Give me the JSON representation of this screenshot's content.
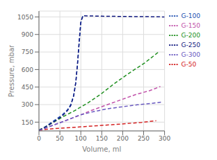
{
  "chart_data": {
    "type": "line",
    "xlabel": "Volume, ml",
    "ylabel": "Pressure, mbar",
    "xlim": [
      0,
      300
    ],
    "ylim": [
      75,
      1100
    ],
    "xticks": [
      0,
      50,
      100,
      150,
      200,
      250,
      300
    ],
    "yticks": [
      150,
      300,
      450,
      600,
      750,
      900,
      1050
    ],
    "grid": true,
    "legend": "right",
    "line_style": "dashed",
    "marker": "none",
    "series": [
      {
        "name": "G-50",
        "color": "#d42020",
        "x": [
          0,
          20,
          50,
          80,
          110,
          140,
          175,
          210,
          245,
          280
        ],
        "values": [
          80,
          90,
          98,
          105,
          112,
          120,
          128,
          138,
          148,
          162
        ]
      },
      {
        "name": "G-100",
        "color": "#2050b0",
        "x": [
          0,
          15,
          35,
          55,
          68,
          76,
          83,
          88,
          92,
          96,
          100,
          105
        ],
        "values": [
          80,
          110,
          160,
          210,
          255,
          300,
          380,
          490,
          640,
          820,
          1000,
          1060
        ]
      },
      {
        "name": "G-150",
        "color": "#c050a8",
        "x": [
          0,
          25,
          60,
          95,
          125,
          160,
          195,
          230,
          265,
          290
        ],
        "values": [
          80,
          112,
          158,
          205,
          250,
          295,
          340,
          385,
          420,
          455
        ]
      },
      {
        "name": "G-200",
        "color": "#209020",
        "x": [
          0,
          25,
          55,
          85,
          115,
          148,
          180,
          215,
          252,
          285
        ],
        "values": [
          82,
          128,
          192,
          248,
          310,
          390,
          480,
          568,
          655,
          748
        ]
      },
      {
        "name": "G-250",
        "color": "#101880",
        "x": [
          0,
          15,
          35,
          55,
          68,
          76,
          83,
          88,
          92,
          96,
          100,
          105,
          140,
          200,
          260,
          300
        ],
        "values": [
          80,
          108,
          152,
          200,
          248,
          292,
          375,
          490,
          645,
          840,
          1010,
          1060,
          1057,
          1054,
          1052,
          1050
        ]
      },
      {
        "name": "G-300",
        "color": "#6858c0",
        "x": [
          0,
          25,
          60,
          95,
          130,
          165,
          200,
          235,
          268,
          295
        ],
        "values": [
          80,
          112,
          158,
          208,
          240,
          265,
          282,
          298,
          310,
          322
        ]
      }
    ]
  }
}
